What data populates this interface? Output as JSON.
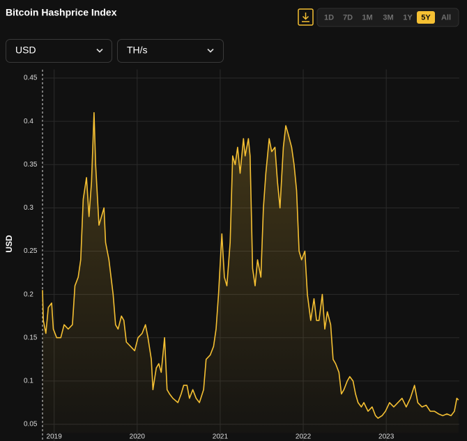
{
  "header": {
    "title": "Bitcoin Hashprice Index"
  },
  "controls": {
    "currency": "USD",
    "unit": "TH/s",
    "ranges": [
      "1D",
      "7D",
      "1M",
      "3M",
      "1Y",
      "5Y",
      "All"
    ],
    "selected_range": "5Y"
  },
  "chart_data": {
    "type": "line",
    "ylabel": "USD",
    "color": "#f5c033",
    "grid": true,
    "xlim": [
      2018.86,
      2023.88
    ],
    "xticks": [
      2019,
      2020,
      2021,
      2022,
      2023
    ],
    "ylim": [
      0.04,
      0.46
    ],
    "yticks": [
      0.05,
      0.1,
      0.15,
      0.2,
      0.25,
      0.3,
      0.35,
      0.4,
      0.45
    ],
    "x": [
      2018.86,
      2018.87,
      2018.9,
      2018.93,
      2018.97,
      2018.99,
      2019.03,
      2019.08,
      2019.12,
      2019.17,
      2019.22,
      2019.25,
      2019.29,
      2019.32,
      2019.35,
      2019.39,
      2019.42,
      2019.45,
      2019.48,
      2019.5,
      2019.54,
      2019.57,
      2019.6,
      2019.62,
      2019.66,
      2019.71,
      2019.74,
      2019.77,
      2019.81,
      2019.84,
      2019.87,
      2019.92,
      2019.97,
      2020.01,
      2020.06,
      2020.1,
      2020.13,
      2020.17,
      2020.19,
      2020.23,
      2020.26,
      2020.29,
      2020.33,
      2020.36,
      2020.39,
      2020.43,
      2020.49,
      2020.53,
      2020.56,
      2020.6,
      2020.63,
      2020.67,
      2020.71,
      2020.75,
      2020.8,
      2020.83,
      2020.88,
      2020.92,
      2020.95,
      2020.98,
      2021.02,
      2021.05,
      2021.08,
      2021.12,
      2021.15,
      2021.18,
      2021.21,
      2021.24,
      2021.28,
      2021.3,
      2021.34,
      2021.36,
      2021.39,
      2021.42,
      2021.45,
      2021.49,
      2021.52,
      2021.55,
      2021.59,
      2021.62,
      2021.66,
      2021.69,
      2021.72,
      2021.76,
      2021.79,
      2021.82,
      2021.86,
      2021.89,
      2021.92,
      2021.95,
      2021.98,
      2022.02,
      2022.05,
      2022.09,
      2022.13,
      2022.16,
      2022.19,
      2022.23,
      2022.26,
      2022.29,
      2022.33,
      2022.36,
      2022.39,
      2022.43,
      2022.46,
      2022.49,
      2022.53,
      2022.56,
      2022.6,
      2022.63,
      2022.66,
      2022.7,
      2022.73,
      2022.78,
      2022.83,
      2022.87,
      2022.9,
      2022.95,
      2022.99,
      2023.04,
      2023.09,
      2023.14,
      2023.19,
      2023.24,
      2023.29,
      2023.34,
      2023.38,
      2023.43,
      2023.48,
      2023.53,
      2023.58,
      2023.63,
      2023.68,
      2023.73,
      2023.78,
      2023.82,
      2023.85,
      2023.87
    ],
    "values": [
      0.205,
      0.17,
      0.155,
      0.185,
      0.19,
      0.16,
      0.15,
      0.15,
      0.165,
      0.16,
      0.165,
      0.21,
      0.22,
      0.24,
      0.31,
      0.335,
      0.29,
      0.33,
      0.41,
      0.35,
      0.28,
      0.29,
      0.3,
      0.26,
      0.24,
      0.2,
      0.165,
      0.16,
      0.175,
      0.17,
      0.145,
      0.14,
      0.135,
      0.15,
      0.155,
      0.165,
      0.15,
      0.125,
      0.09,
      0.115,
      0.12,
      0.11,
      0.15,
      0.09,
      0.085,
      0.08,
      0.075,
      0.085,
      0.095,
      0.095,
      0.08,
      0.09,
      0.08,
      0.075,
      0.09,
      0.125,
      0.13,
      0.14,
      0.16,
      0.2,
      0.27,
      0.22,
      0.21,
      0.26,
      0.36,
      0.35,
      0.37,
      0.34,
      0.38,
      0.36,
      0.38,
      0.36,
      0.23,
      0.21,
      0.24,
      0.22,
      0.3,
      0.34,
      0.38,
      0.365,
      0.37,
      0.33,
      0.3,
      0.37,
      0.395,
      0.385,
      0.37,
      0.35,
      0.32,
      0.25,
      0.24,
      0.25,
      0.2,
      0.17,
      0.195,
      0.17,
      0.17,
      0.2,
      0.16,
      0.18,
      0.165,
      0.125,
      0.12,
      0.11,
      0.085,
      0.09,
      0.1,
      0.105,
      0.1,
      0.085,
      0.075,
      0.07,
      0.075,
      0.065,
      0.07,
      0.06,
      0.057,
      0.06,
      0.065,
      0.075,
      0.07,
      0.075,
      0.08,
      0.07,
      0.08,
      0.095,
      0.075,
      0.07,
      0.072,
      0.065,
      0.065,
      0.062,
      0.06,
      0.062,
      0.06,
      0.065,
      0.08,
      0.078
    ]
  }
}
